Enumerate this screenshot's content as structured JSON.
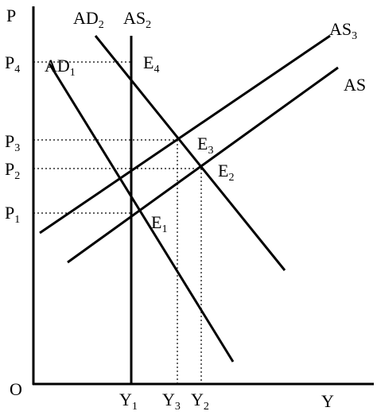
{
  "axes": {
    "vertical": "P",
    "horizontal": "Y",
    "origin": "O"
  },
  "price_levels": [
    {
      "base": "P",
      "sub": "4"
    },
    {
      "base": "P",
      "sub": "3"
    },
    {
      "base": "P",
      "sub": "2"
    },
    {
      "base": "P",
      "sub": "1"
    }
  ],
  "output_levels": [
    {
      "base": "Y",
      "sub": "1"
    },
    {
      "base": "Y",
      "sub": "3"
    },
    {
      "base": "Y",
      "sub": "2"
    }
  ],
  "curves": [
    {
      "base": "AD",
      "sub": "2"
    },
    {
      "base": "AS",
      "sub": "2"
    },
    {
      "base": "AS",
      "sub": "3"
    },
    {
      "base": "AS"
    },
    {
      "base": "AD",
      "sub": "1"
    }
  ],
  "points": [
    {
      "base": "E",
      "sub": "4"
    },
    {
      "base": "E",
      "sub": "3"
    },
    {
      "base": "E",
      "sub": "2"
    },
    {
      "base": "E",
      "sub": "1"
    }
  ]
}
